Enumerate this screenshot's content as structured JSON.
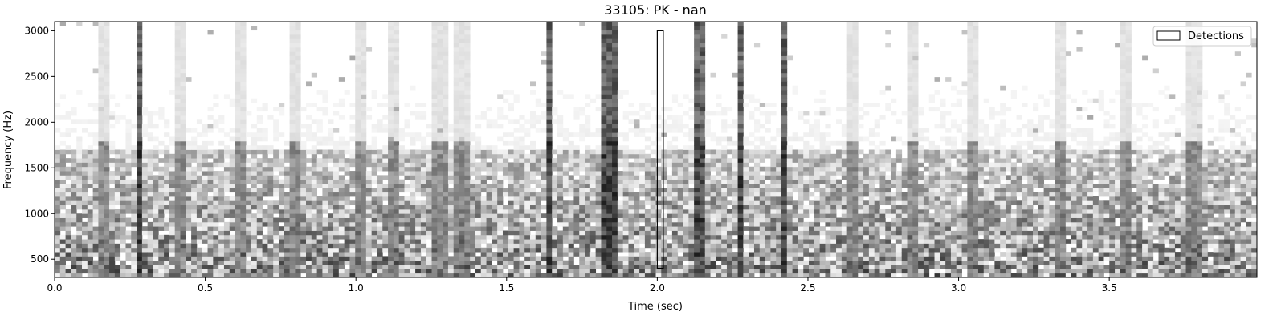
{
  "chart_data": {
    "type": "heatmap",
    "title": "33105: PK - nan",
    "xlabel": "Time (sec)",
    "ylabel": "Frequency (Hz)",
    "xlim": [
      0.0,
      3.99
    ],
    "ylim": [
      300,
      3100
    ],
    "x_ticks": [
      0.0,
      0.5,
      1.0,
      1.5,
      2.0,
      2.5,
      3.0,
      3.5
    ],
    "x_tick_labels": [
      "0.0",
      "0.5",
      "1.0",
      "1.5",
      "2.0",
      "2.5",
      "3.0",
      "3.5"
    ],
    "y_ticks": [
      500,
      1000,
      1500,
      2000,
      2500,
      3000
    ],
    "y_tick_labels": [
      "500",
      "1000",
      "1500",
      "2000",
      "2500",
      "3000"
    ],
    "colormap": "gray_r",
    "legend": {
      "position": "top-right",
      "entries": [
        "Detections"
      ]
    },
    "detections": [
      {
        "t_start": 2.0,
        "t_end": 2.02,
        "f_low": 400,
        "f_high": 3000
      }
    ],
    "strong_transients_sec": [
      1.83,
      1.86,
      2.14,
      2.27,
      2.28,
      2.42,
      0.28,
      1.64
    ],
    "moderate_transients_sec": [
      0.16,
      0.41,
      0.61,
      0.8,
      1.02,
      1.12,
      1.28,
      1.35,
      2.65,
      2.85,
      3.05,
      3.33,
      3.55,
      3.78
    ]
  }
}
